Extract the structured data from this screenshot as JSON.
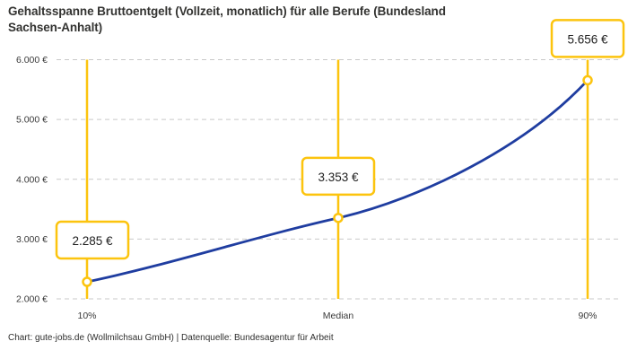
{
  "page": {
    "title": "Gehaltsspanne Bruttoentgelt (Vollzeit, monatlich) für alle Berufe (Bundesland Sachsen-Anhalt)",
    "title_lines": [
      "Gehaltsspanne Bruttoentgelt (Vollzeit, monatlich) für alle Berufe (Bundesland",
      "Sachsen-Anhalt)"
    ],
    "footer": "Chart: gute-jobs.de (Wollmilchsau GmbH) | Datenquelle: Bundesagentur für Arbeit"
  },
  "chart_data": {
    "type": "line",
    "title": "Gehaltsspanne Bruttoentgelt (Vollzeit, monatlich) für alle Berufe (Bundesland Sachsen-Anhalt)",
    "categories": [
      "10%",
      "Median",
      "90%"
    ],
    "values": [
      2285,
      3353,
      5656
    ],
    "point_labels": [
      "2.285 €",
      "3.353 €",
      "5.656 €"
    ],
    "xlabel": "",
    "ylabel": "",
    "ylim": [
      2000,
      6000
    ],
    "y_ticks": [
      {
        "value": 2000,
        "label": "2.000 €"
      },
      {
        "value": 3000,
        "label": "3.000 €"
      },
      {
        "value": 4000,
        "label": "4.000 €"
      },
      {
        "value": 5000,
        "label": "5.000 €"
      },
      {
        "value": 6000,
        "label": "6.000 €"
      }
    ],
    "grid": "horizontal-dashed",
    "legend": "none",
    "colors": {
      "line": "#1f3da0",
      "accent": "#fcc40e",
      "marker_fill": "#ffffff",
      "grid": "#c9c9c9",
      "label_text": "#1f1f1f",
      "tick_text": "#3a3a3a",
      "background": "#ffffff"
    }
  }
}
